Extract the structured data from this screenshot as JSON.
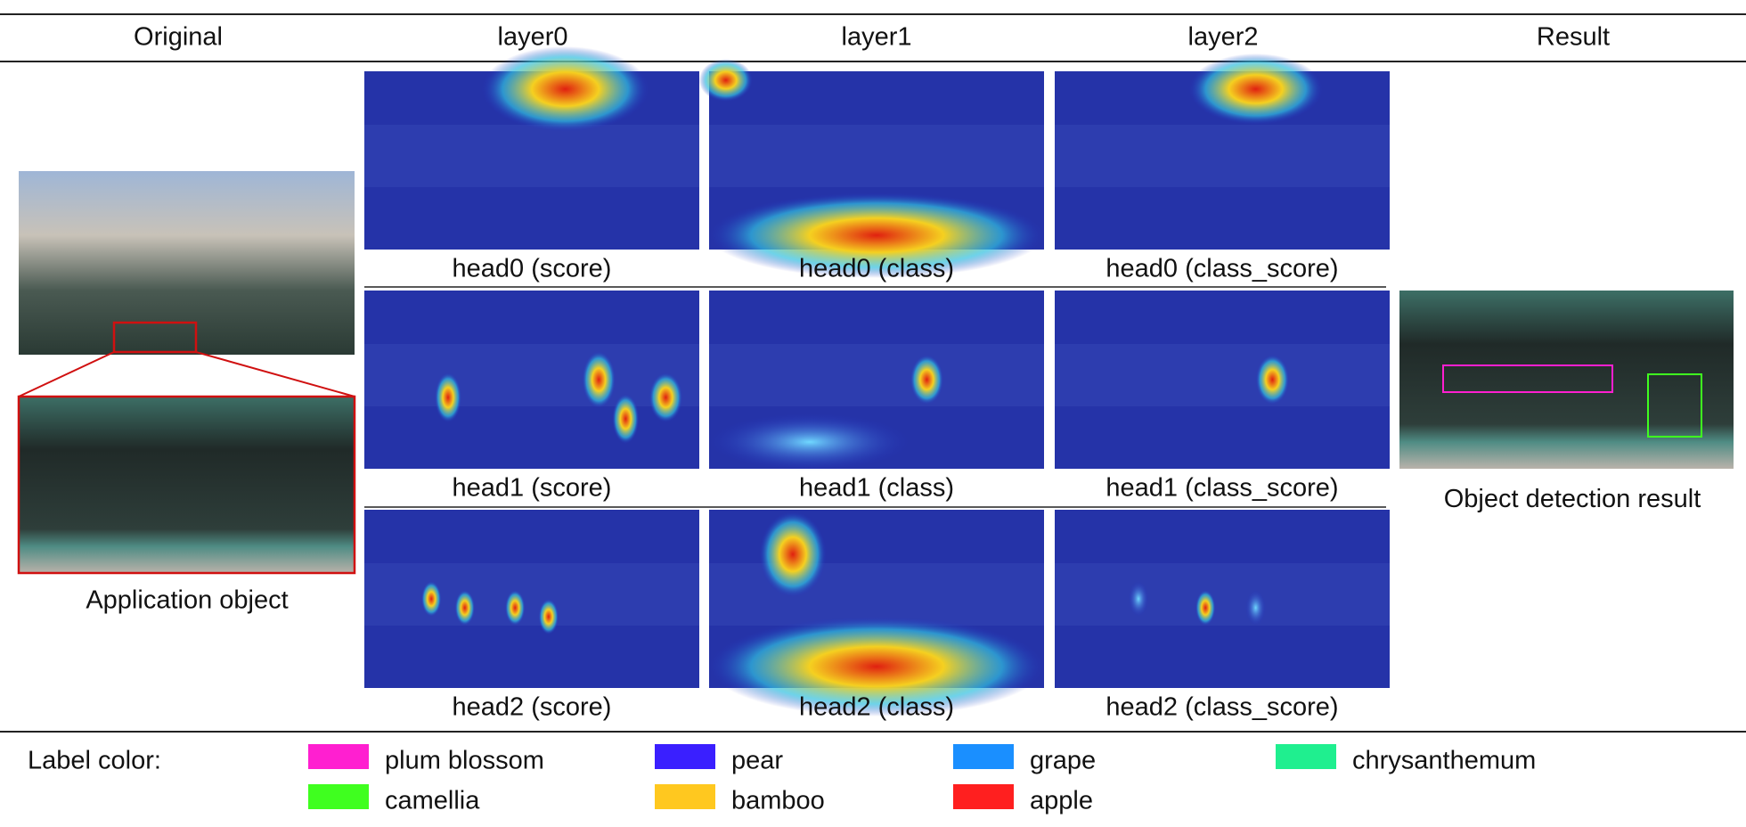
{
  "header": {
    "columns": [
      "Original",
      "layer0",
      "layer1",
      "layer2",
      "Result"
    ]
  },
  "grid": {
    "captions": [
      [
        "head0 (score)",
        "head0 (class)",
        "head0 (class_score)"
      ],
      [
        "head1 (score)",
        "head1 (class)",
        "head1 (class_score)"
      ],
      [
        "head2 (score)",
        "head2 (class)",
        "head2 (class_score)"
      ]
    ]
  },
  "original": {
    "caption": "Application object"
  },
  "result": {
    "caption": "Object detection result"
  },
  "legend": {
    "title": "Label color:",
    "items": [
      {
        "name": "plum blossom",
        "color": "#ff1fd0"
      },
      {
        "name": "pear",
        "color": "#3a1fff"
      },
      {
        "name": "grape",
        "color": "#1a8fff"
      },
      {
        "name": "chrysanthemum",
        "color": "#1fef8f"
      },
      {
        "name": "camellia",
        "color": "#3fff1f"
      },
      {
        "name": "bamboo",
        "color": "#ffc81f"
      },
      {
        "name": "apple",
        "color": "#ff1f1f"
      }
    ]
  }
}
